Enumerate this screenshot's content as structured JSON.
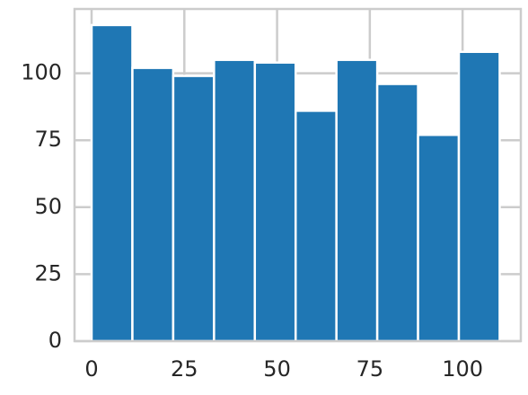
{
  "chart_data": {
    "type": "histogram",
    "bins": [
      0,
      11,
      22,
      33,
      44,
      55,
      66,
      77,
      88,
      99,
      110
    ],
    "counts": [
      118,
      102,
      99,
      105,
      104,
      86,
      105,
      96,
      77,
      108
    ],
    "color": "#1f77b4",
    "xlim": [
      -4.6,
      115.7
    ],
    "xticks": [
      0,
      25,
      50,
      75,
      100
    ],
    "ylim": [
      0,
      124
    ],
    "yticks": [
      0,
      25,
      50,
      75,
      100
    ],
    "grid": true
  }
}
